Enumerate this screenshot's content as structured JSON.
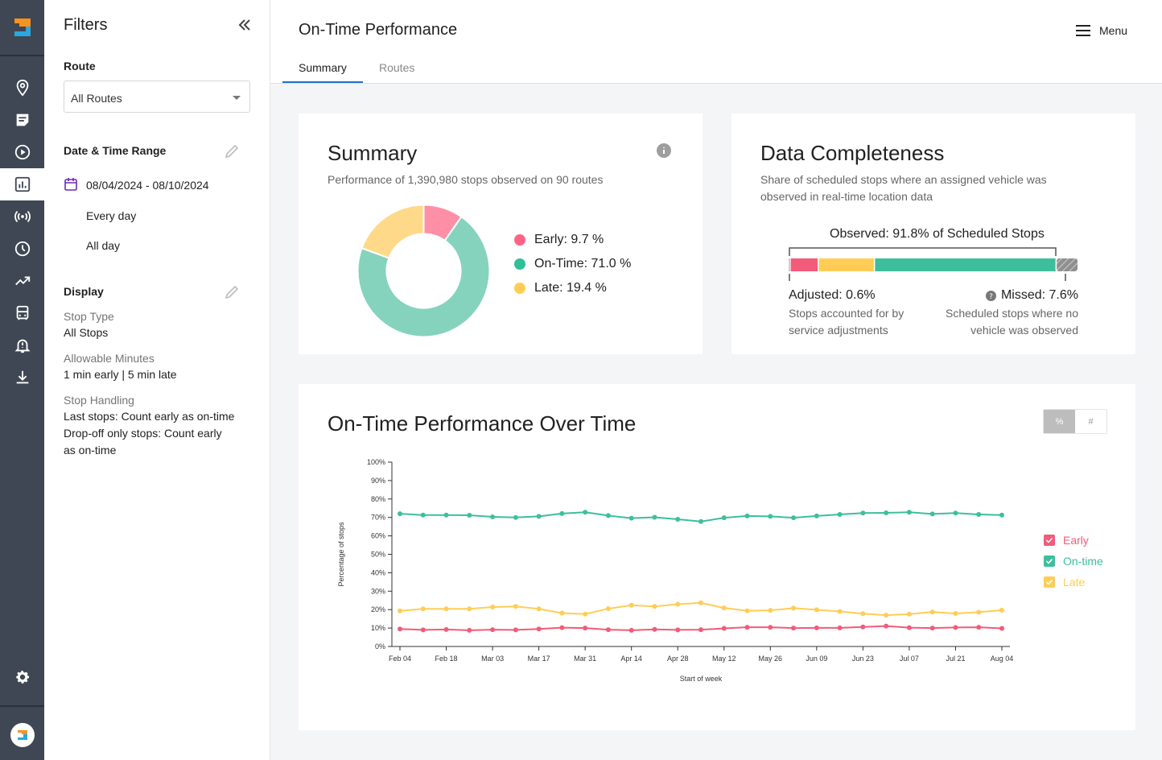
{
  "rail": {
    "items": [
      "map-pin-icon",
      "notes-icon",
      "play-icon",
      "reports-icon",
      "broadcast-icon",
      "clock-icon",
      "trend-icon",
      "bus-icon",
      "alert-icon",
      "download-icon"
    ],
    "active": "reports-icon",
    "colors": {
      "bg": "#3f4754",
      "icon": "#ffffff",
      "active_icon": "#3f4754"
    }
  },
  "filters": {
    "title": "Filters",
    "route_label": "Route",
    "route_value": "All Routes",
    "date_label": "Date & Time Range",
    "date_range": "08/04/2024 - 08/10/2024",
    "days": "Every day",
    "hours": "All day",
    "display_label": "Display",
    "stop_type_label": "Stop Type",
    "stop_type_value": "All Stops",
    "allowable_label": "Allowable Minutes",
    "allowable_value": "1 min early | 5 min late",
    "stop_handling_label": "Stop Handling",
    "stop_handling_line1": "Last stops: Count early as on-time",
    "stop_handling_line2": "Drop-off only stops: Count early",
    "stop_handling_line3": "as on-time"
  },
  "header": {
    "title": "On-Time Performance",
    "menu_label": "Menu",
    "tabs": [
      {
        "label": "Summary",
        "active": true
      },
      {
        "label": "Routes",
        "active": false
      }
    ]
  },
  "summary": {
    "title": "Summary",
    "description": "Performance of 1,390,980 stops observed on 90 routes",
    "legend": [
      {
        "label": "Early: 9.7 %",
        "color": "#ff6384"
      },
      {
        "label": "On-Time: 71.0 %",
        "color": "#2fbf9a"
      },
      {
        "label": "Late: 19.4 %",
        "color": "#ffcd56"
      }
    ],
    "donut": [
      {
        "name": "Early",
        "value": 9.7,
        "color": "#fe8fa6"
      },
      {
        "name": "On-Time",
        "value": 71.0,
        "color": "#85d3bd"
      },
      {
        "name": "Late",
        "value": 19.4,
        "color": "#ffd98a"
      }
    ]
  },
  "completeness": {
    "title": "Data Completeness",
    "desc_line1": "Share of scheduled stops where an assigned vehicle was",
    "desc_line2": "observed in real-time location data",
    "observed_label": "Observed: 91.8% of Scheduled Stops",
    "adjusted_label": "Adjusted: 0.6%",
    "adjusted_desc_line1": "Stops accounted for by",
    "adjusted_desc_line2": "service adjustments",
    "missed_label": "Missed: 7.6%",
    "missed_desc_line1": "Scheduled stops where no",
    "missed_desc_line2": "vehicle was observed",
    "bar": [
      {
        "name": "Adjusted",
        "value": 0.6,
        "color": "#9e9e9e"
      },
      {
        "name": "Early",
        "value": 9.7,
        "color": "#f25b7a"
      },
      {
        "name": "Late",
        "value": 19.4,
        "color": "#ffcd56"
      },
      {
        "name": "On-Time",
        "value": 62.7,
        "color": "#3dbf9c"
      },
      {
        "name": "Missed",
        "value": 7.6,
        "color": "#8f8f8f"
      }
    ]
  },
  "over_time": {
    "title": "On-Time Performance Over Time",
    "toggle_pct": "%",
    "toggle_num": "#"
  },
  "chart_data": {
    "type": "line",
    "title": "On-Time Performance Over Time",
    "xlabel": "Start of week",
    "ylabel": "Percentage of stops",
    "ylim": [
      0,
      100
    ],
    "yticks": [
      "0%",
      "10%",
      "20%",
      "30%",
      "40%",
      "50%",
      "60%",
      "70%",
      "80%",
      "90%",
      "100%"
    ],
    "xticks": [
      "Feb 04",
      "Feb 18",
      "Mar 03",
      "Mar 17",
      "Mar 31",
      "Apr 14",
      "Apr 28",
      "May 12",
      "May 26",
      "Jun 09",
      "Jun 23",
      "Jul 07",
      "Jul 21",
      "Aug 04"
    ],
    "x": [
      "Feb 04",
      "Feb 11",
      "Feb 18",
      "Feb 25",
      "Mar 03",
      "Mar 10",
      "Mar 17",
      "Mar 24",
      "Mar 31",
      "Apr 07",
      "Apr 14",
      "Apr 21",
      "Apr 28",
      "May 05",
      "May 12",
      "May 19",
      "May 26",
      "Jun 02",
      "Jun 09",
      "Jun 16",
      "Jun 23",
      "Jun 30",
      "Jul 07",
      "Jul 14",
      "Jul 21",
      "Jul 28",
      "Aug 04"
    ],
    "legend_position": "right",
    "series": [
      {
        "name": "Early",
        "color": "#f25b7a",
        "values": [
          9.5,
          9.0,
          9.2,
          8.8,
          9.1,
          9.0,
          9.5,
          10.2,
          10.0,
          9.1,
          8.8,
          9.3,
          9.0,
          9.1,
          9.8,
          10.4,
          10.4,
          10.0,
          10.1,
          10.1,
          10.6,
          11.1,
          10.2,
          10.0,
          10.3,
          10.4,
          9.8
        ]
      },
      {
        "name": "On-time",
        "color": "#3dbf9c",
        "values": [
          72.0,
          71.3,
          71.3,
          71.2,
          70.3,
          70.0,
          70.6,
          72.1,
          72.8,
          71.0,
          69.6,
          70.1,
          69.0,
          67.8,
          69.8,
          70.8,
          70.6,
          69.8,
          70.8,
          71.6,
          72.4,
          72.5,
          72.8,
          71.9,
          72.4,
          71.6,
          71.3
        ]
      },
      {
        "name": "Late",
        "color": "#ffcd56",
        "values": [
          19.3,
          20.4,
          20.4,
          20.4,
          21.4,
          21.7,
          20.4,
          18.1,
          17.6,
          20.5,
          22.4,
          21.7,
          22.9,
          23.7,
          20.9,
          19.4,
          19.6,
          20.8,
          19.9,
          19.0,
          17.8,
          17.0,
          17.6,
          18.7,
          17.9,
          18.6,
          19.7
        ]
      }
    ]
  }
}
